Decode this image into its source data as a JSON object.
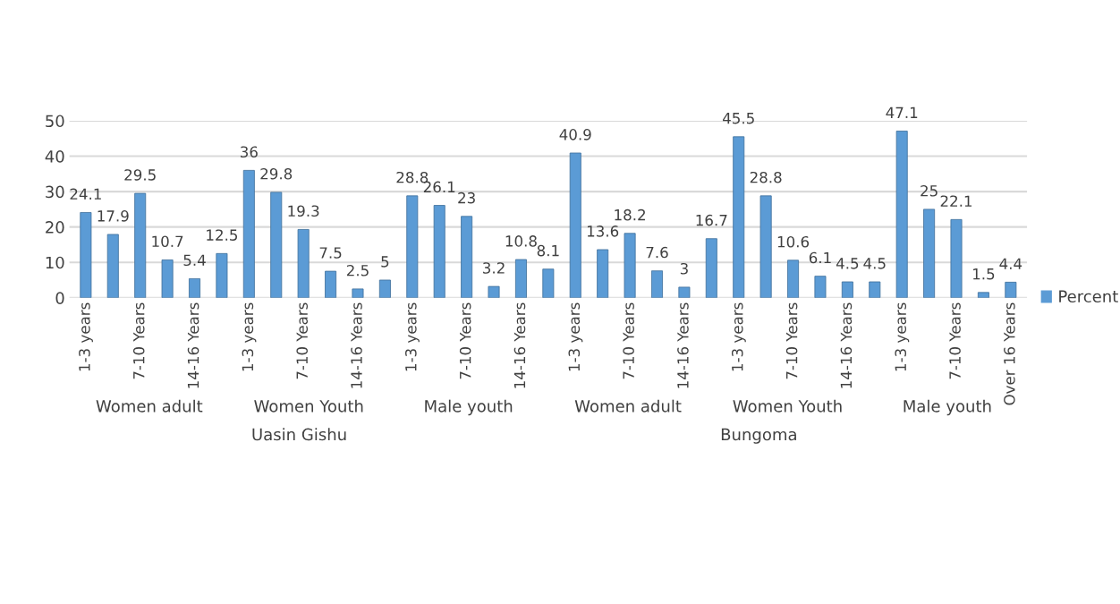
{
  "chart_data": {
    "type": "bar",
    "categories": [
      "1-3 years",
      null,
      "7-10 Years",
      null,
      "14-16 Years",
      null,
      "1-3 years",
      null,
      "7-10 Years",
      null,
      "14-16 Years",
      null,
      "1-3 years",
      null,
      "7-10 Years",
      null,
      "14-16 Years",
      null,
      "1-3 years",
      null,
      "7-10 Years",
      null,
      "14-16 Years",
      null,
      "1-3 years",
      null,
      "7-10 Years",
      null,
      "14-16 Years",
      null,
      "1-3 years",
      null,
      "7-10 Years",
      null,
      "Over 16 Years"
    ],
    "series": [
      {
        "name": "Percent",
        "color": "#5b9bd5",
        "values": [
          24.1,
          17.9,
          29.5,
          10.7,
          5.4,
          12.5,
          36,
          29.8,
          19.3,
          7.5,
          2.5,
          5,
          28.8,
          26.1,
          23,
          3.2,
          10.8,
          8.1,
          40.9,
          13.6,
          18.2,
          7.6,
          3,
          16.7,
          45.5,
          28.8,
          10.6,
          6.1,
          4.5,
          4.5,
          47.1,
          25,
          22.1,
          1.5,
          4.4
        ]
      }
    ],
    "ylim": [
      0,
      50
    ],
    "yticks": [
      0,
      10,
      20,
      30,
      40,
      50
    ],
    "grid": "y",
    "legend": "right",
    "data_labels": true,
    "annotations": [
      "Women adult",
      "Women Youth",
      "Male youth",
      "Women adult",
      "Women Youth",
      "Male youth",
      "Uasin Gishu",
      "Bungoma"
    ]
  }
}
